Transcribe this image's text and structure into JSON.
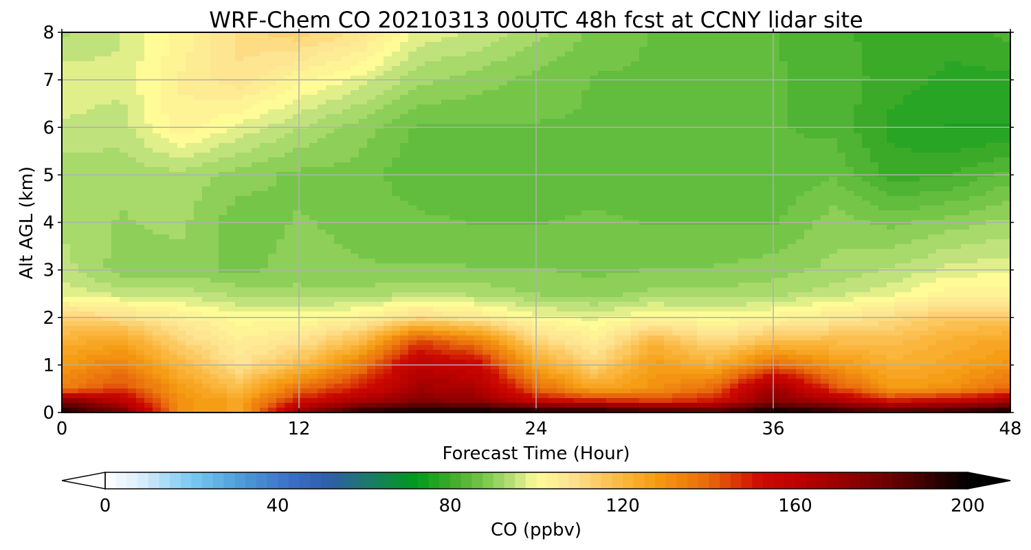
{
  "chart_data": {
    "type": "heatmap",
    "title": "WRF-Chem CO  20210313 00UTC 48h fcst at CCNY lidar site",
    "xlabel": "Forecast Time (Hour)",
    "ylabel": "Alt AGL (km)",
    "xlim": [
      0,
      48
    ],
    "ylim": [
      0,
      8
    ],
    "x_ticks": [
      0,
      12,
      24,
      36,
      48
    ],
    "y_ticks": [
      0,
      1,
      2,
      3,
      4,
      5,
      6,
      7,
      8
    ],
    "grid": true,
    "x": [
      0,
      3,
      6,
      9,
      12,
      15,
      18,
      21,
      24,
      27,
      30,
      33,
      36,
      39,
      42,
      45,
      48
    ],
    "y": [
      0,
      0.25,
      0.5,
      1,
      1.5,
      2,
      2.5,
      3,
      4,
      5,
      6,
      7,
      8
    ],
    "values": [
      [
        200,
        180,
        130,
        125,
        170,
        195,
        200,
        200,
        200,
        200,
        195,
        190,
        200,
        195,
        190,
        195,
        200
      ],
      [
        175,
        160,
        130,
        125,
        150,
        165,
        175,
        172,
        155,
        150,
        145,
        150,
        175,
        165,
        150,
        155,
        165
      ],
      [
        135,
        145,
        128,
        118,
        138,
        150,
        168,
        165,
        140,
        125,
        130,
        140,
        170,
        145,
        128,
        130,
        140
      ],
      [
        128,
        135,
        120,
        108,
        118,
        135,
        160,
        155,
        125,
        112,
        128,
        122,
        140,
        130,
        122,
        125,
        130
      ],
      [
        122,
        125,
        112,
        104,
        108,
        118,
        145,
        135,
        112,
        104,
        120,
        110,
        118,
        118,
        118,
        122,
        125
      ],
      [
        112,
        110,
        104,
        100,
        100,
        103,
        110,
        106,
        100,
        98,
        102,
        100,
        102,
        106,
        110,
        115,
        115
      ],
      [
        98,
        95,
        95,
        93,
        92,
        92,
        94,
        93,
        91,
        90,
        92,
        92,
        93,
        95,
        98,
        103,
        103
      ],
      [
        95,
        90,
        90,
        88,
        90,
        89,
        89,
        89,
        89,
        88,
        89,
        89,
        90,
        92,
        94,
        97,
        98
      ],
      [
        93,
        91,
        92,
        87,
        89,
        88,
        87,
        86,
        86,
        87,
        86,
        86,
        86,
        90,
        88,
        90,
        92
      ],
      [
        92,
        92,
        93,
        90,
        88,
        88,
        84,
        84,
        84,
        84,
        84,
        84,
        84,
        86,
        80,
        81,
        85
      ],
      [
        96,
        95,
        103,
        98,
        94,
        90,
        86,
        86,
        86,
        86,
        84,
        84,
        84,
        83,
        78,
        76,
        76
      ],
      [
        98,
        97,
        104,
        108,
        102,
        98,
        92,
        90,
        88,
        86,
        86,
        84,
        84,
        83,
        80,
        78,
        78
      ],
      [
        93,
        96,
        102,
        110,
        113,
        108,
        98,
        96,
        92,
        88,
        86,
        84,
        84,
        82,
        80,
        80,
        82
      ]
    ]
  },
  "colorbar": {
    "label": "CO  (ppbv)",
    "min": 0,
    "max": 200,
    "ticks": [
      0,
      40,
      80,
      120,
      160,
      200
    ],
    "stops": [
      [
        0,
        "#ffffff"
      ],
      [
        8,
        "#ddeefa"
      ],
      [
        20,
        "#79c9f3"
      ],
      [
        32,
        "#4b9ad8"
      ],
      [
        44,
        "#3a6cc4"
      ],
      [
        52,
        "#2f5ea8"
      ],
      [
        60,
        "#1f7770"
      ],
      [
        72,
        "#009a1c"
      ],
      [
        80,
        "#3caa29"
      ],
      [
        88,
        "#79c84a"
      ],
      [
        95,
        "#c0e27d"
      ],
      [
        100,
        "#fffb97"
      ],
      [
        108,
        "#fde392"
      ],
      [
        120,
        "#fbb63e"
      ],
      [
        128,
        "#f59b12"
      ],
      [
        140,
        "#e8690c"
      ],
      [
        152,
        "#cc0a00"
      ],
      [
        160,
        "#bd0200"
      ],
      [
        172,
        "#920000"
      ],
      [
        185,
        "#5c0000"
      ],
      [
        200,
        "#000000"
      ]
    ]
  }
}
